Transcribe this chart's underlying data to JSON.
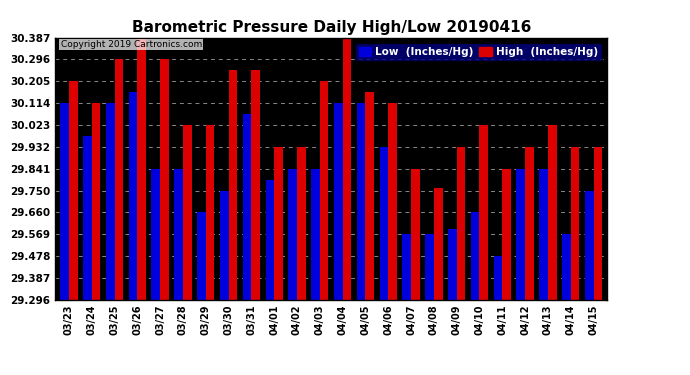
{
  "title": "Barometric Pressure Daily High/Low 20190416",
  "plot_bg_color": "#000000",
  "fig_bg_color": "#ffffff",
  "grid_color": "#888888",
  "dates": [
    "03/23",
    "03/24",
    "03/25",
    "03/26",
    "03/27",
    "03/28",
    "03/29",
    "03/30",
    "03/31",
    "04/01",
    "04/02",
    "04/03",
    "04/04",
    "04/05",
    "04/06",
    "04/07",
    "04/08",
    "04/09",
    "04/10",
    "04/11",
    "04/12",
    "04/13",
    "04/14",
    "04/15"
  ],
  "low_values": [
    30.114,
    29.978,
    30.114,
    30.16,
    29.841,
    29.841,
    29.66,
    29.75,
    30.068,
    29.796,
    29.841,
    29.841,
    30.114,
    30.114,
    29.932,
    29.569,
    29.569,
    29.59,
    29.66,
    29.478,
    29.841,
    29.841,
    29.569,
    29.75
  ],
  "high_values": [
    30.205,
    30.114,
    30.296,
    30.387,
    30.296,
    30.023,
    30.023,
    30.25,
    30.25,
    29.932,
    29.932,
    30.205,
    30.387,
    30.16,
    30.114,
    29.841,
    29.76,
    29.932,
    30.023,
    29.841,
    29.932,
    30.023,
    29.932,
    29.932
  ],
  "low_color": "#0000dd",
  "high_color": "#dd0000",
  "ylim_min": 29.296,
  "ylim_max": 30.387,
  "yticks": [
    29.296,
    29.387,
    29.478,
    29.569,
    29.66,
    29.75,
    29.841,
    29.932,
    30.023,
    30.114,
    30.205,
    30.296,
    30.387
  ],
  "legend_low_label": "Low  (Inches/Hg)",
  "legend_high_label": "High  (Inches/Hg)",
  "bar_width": 0.38
}
